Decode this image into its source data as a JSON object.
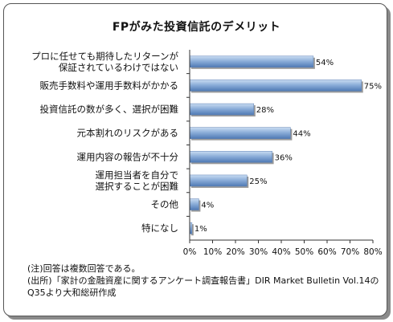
{
  "chart_data": {
    "type": "bar",
    "orientation": "horizontal",
    "title": "FPがみた投資信託のデメリット",
    "categories": [
      [
        "プロに任せても期待したリターンが",
        "保証されているわけではない"
      ],
      [
        "販売手数料や運用手数料がかかる"
      ],
      [
        "投資信託の数が多く、選択が困難"
      ],
      [
        "元本割れのリスクがある"
      ],
      [
        "運用内容の報告が不十分"
      ],
      [
        "運用担当者を自分で",
        "選択することが困難"
      ],
      [
        "その他"
      ],
      [
        "特になし"
      ]
    ],
    "values": [
      54,
      75,
      28,
      44,
      36,
      25,
      4,
      1
    ],
    "value_labels": [
      "54%",
      "75%",
      "28%",
      "44%",
      "36%",
      "25%",
      "4%",
      "1%"
    ],
    "xlim": [
      0,
      80
    ],
    "x_ticks": [
      "0%",
      "10%",
      "20%",
      "30%",
      "40%",
      "50%",
      "60%",
      "70%",
      "80%"
    ],
    "bar_color": "#86a9d6",
    "grid": false
  },
  "notes": [
    "(注)回答は複数回答である。",
    "(出所)「家計の金融資産に関するアンケート調査報告書」DIR Market Bulletin Vol.14の",
    "Q35より大和総研作成"
  ]
}
